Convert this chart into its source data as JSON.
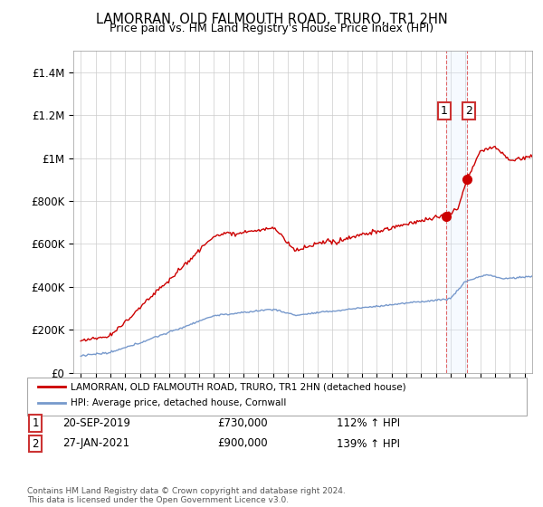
{
  "title": "LAMORRAN, OLD FALMOUTH ROAD, TRURO, TR1 2HN",
  "subtitle": "Price paid vs. HM Land Registry's House Price Index (HPI)",
  "ylabel_ticks": [
    "£0",
    "£200K",
    "£400K",
    "£600K",
    "£800K",
    "£1M",
    "£1.2M",
    "£1.4M"
  ],
  "ytick_vals": [
    0,
    200000,
    400000,
    600000,
    800000,
    1000000,
    1200000,
    1400000
  ],
  "ylim": [
    0,
    1500000
  ],
  "xlim_start": 1994.5,
  "xlim_end": 2025.5,
  "transaction1": {
    "date_num": 2019.72,
    "price": 730000,
    "label": "1"
  },
  "transaction2": {
    "date_num": 2021.08,
    "price": 900000,
    "label": "2"
  },
  "legend_line1": "LAMORRAN, OLD FALMOUTH ROAD, TRURO, TR1 2HN (detached house)",
  "legend_line2": "HPI: Average price, detached house, Cornwall",
  "annot1_date": "20-SEP-2019",
  "annot1_price": "£730,000",
  "annot1_hpi": "112% ↑ HPI",
  "annot2_date": "27-JAN-2021",
  "annot2_price": "£900,000",
  "annot2_hpi": "139% ↑ HPI",
  "footnote": "Contains HM Land Registry data © Crown copyright and database right 2024.\nThis data is licensed under the Open Government Licence v3.0.",
  "red_color": "#cc0000",
  "blue_color": "#7799cc",
  "highlight_color": "#ddeeff",
  "grid_color": "#cccccc",
  "background_color": "#ffffff"
}
